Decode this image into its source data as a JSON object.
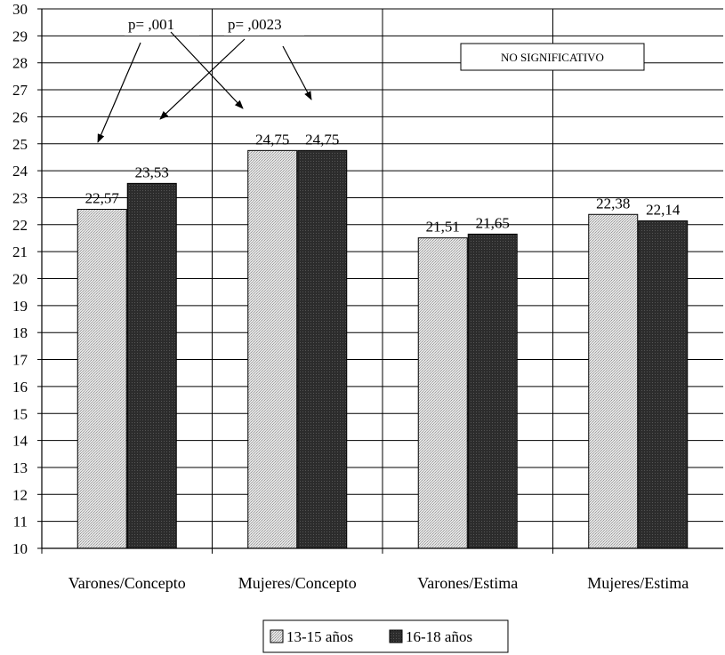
{
  "chart_data": {
    "type": "bar",
    "title": "",
    "xlabel": "",
    "ylabel": "",
    "ylim": [
      10,
      30
    ],
    "y_ticks": [
      10,
      11,
      12,
      13,
      14,
      15,
      16,
      17,
      18,
      19,
      20,
      21,
      22,
      23,
      24,
      25,
      26,
      27,
      28,
      29,
      30
    ],
    "grid": true,
    "legend_position": "bottom",
    "categories": [
      "Varones/Concepto",
      "Mujeres/Concepto",
      "Varones/Estima",
      "Mujeres/Estima"
    ],
    "series": [
      {
        "name": "13-15 años",
        "values": [
          22.57,
          24.75,
          21.51,
          22.38
        ],
        "labels": [
          "22,57",
          "24,75",
          "21,51",
          "22,38"
        ],
        "color": "#d8d8d8"
      },
      {
        "name": "16-18 años",
        "values": [
          23.53,
          24.75,
          21.65,
          22.14
        ],
        "labels": [
          "23,53",
          "24,75",
          "21,65",
          "22,14"
        ],
        "color": "#2e2e2e"
      }
    ],
    "annotations": {
      "p1": "p= ,001",
      "p2": "p= ,0023",
      "not_significant": "NO SIGNIFICATIVO"
    }
  }
}
